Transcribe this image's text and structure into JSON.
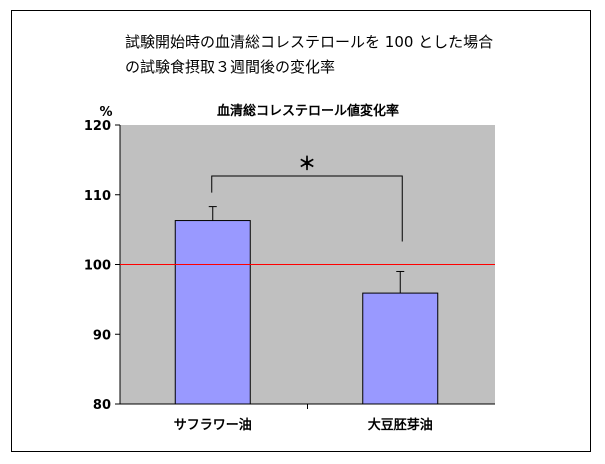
{
  "heading": {
    "line1": "試験開始時の血清総コレステロールを 100 とした場合",
    "line2": "の試験食摂取３週間後の変化率"
  },
  "chart_data": {
    "type": "bar",
    "title": "血清総コレステロール値変化率",
    "y_unit": "%",
    "ylim": [
      80,
      120
    ],
    "yticks": [
      80,
      90,
      100,
      110,
      120
    ],
    "categories": [
      "サフラワー油",
      "大豆胚芽油"
    ],
    "values": [
      106.3,
      95.9
    ],
    "error_upper": [
      108.3,
      99.0
    ],
    "reference_line": 100,
    "significance_mark": "＊",
    "grid": false,
    "colors": {
      "plot_background": "#c0c0c0",
      "bar_fill": "#9999ff",
      "reference_line": "#ff0000"
    }
  }
}
